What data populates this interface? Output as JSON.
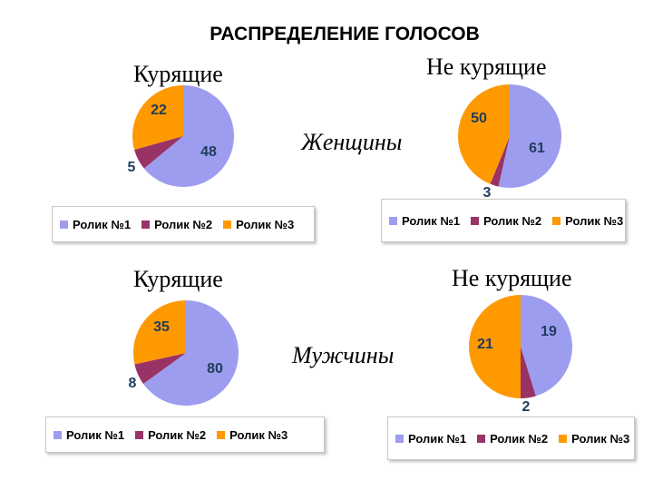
{
  "title": "РАСПРЕДЕЛЕНИЕ ГОЛОСОВ",
  "groups": {
    "women": "Женщины",
    "men": "Мужчины"
  },
  "colors": {
    "Ролик №1": "#9d9df0",
    "Ролик №2": "#993366",
    "Ролик №3": "#ff9900"
  },
  "chart_data": [
    {
      "type": "pie",
      "group": "Женщины",
      "title": "Курящие",
      "categories": [
        "Ролик №1",
        "Ролик №2",
        "Ролик №3"
      ],
      "values": [
        48,
        5,
        22
      ],
      "legend": [
        "Ролик №1",
        "Ролик №2",
        "Ролик №3"
      ],
      "legend_placement": "bottom"
    },
    {
      "type": "pie",
      "group": "Женщины",
      "title": "Не курящие",
      "categories": [
        "Ролик №1",
        "Ролик №2",
        "Ролик №3"
      ],
      "values": [
        61,
        3,
        50
      ],
      "legend": [
        "Ролик №1",
        "Ролик №2",
        "Ролик №3"
      ],
      "legend_placement": "bottom"
    },
    {
      "type": "pie",
      "group": "Мужчины",
      "title": "Курящие",
      "categories": [
        "Ролик №1",
        "Ролик №2",
        "Ролик №3"
      ],
      "values": [
        80,
        8,
        35
      ],
      "legend": [
        "Ролик №1",
        "Ролик №2",
        "Ролик №3"
      ],
      "legend_placement": "bottom"
    },
    {
      "type": "pie",
      "group": "Мужчины",
      "title": "Не курящие",
      "categories": [
        "Ролик №1",
        "Ролик №2",
        "Ролик №3"
      ],
      "values": [
        19,
        2,
        21
      ],
      "legend": [
        "Ролик №1",
        "Ролик №2",
        "Ролик №3"
      ],
      "legend_placement": "bottom"
    }
  ]
}
